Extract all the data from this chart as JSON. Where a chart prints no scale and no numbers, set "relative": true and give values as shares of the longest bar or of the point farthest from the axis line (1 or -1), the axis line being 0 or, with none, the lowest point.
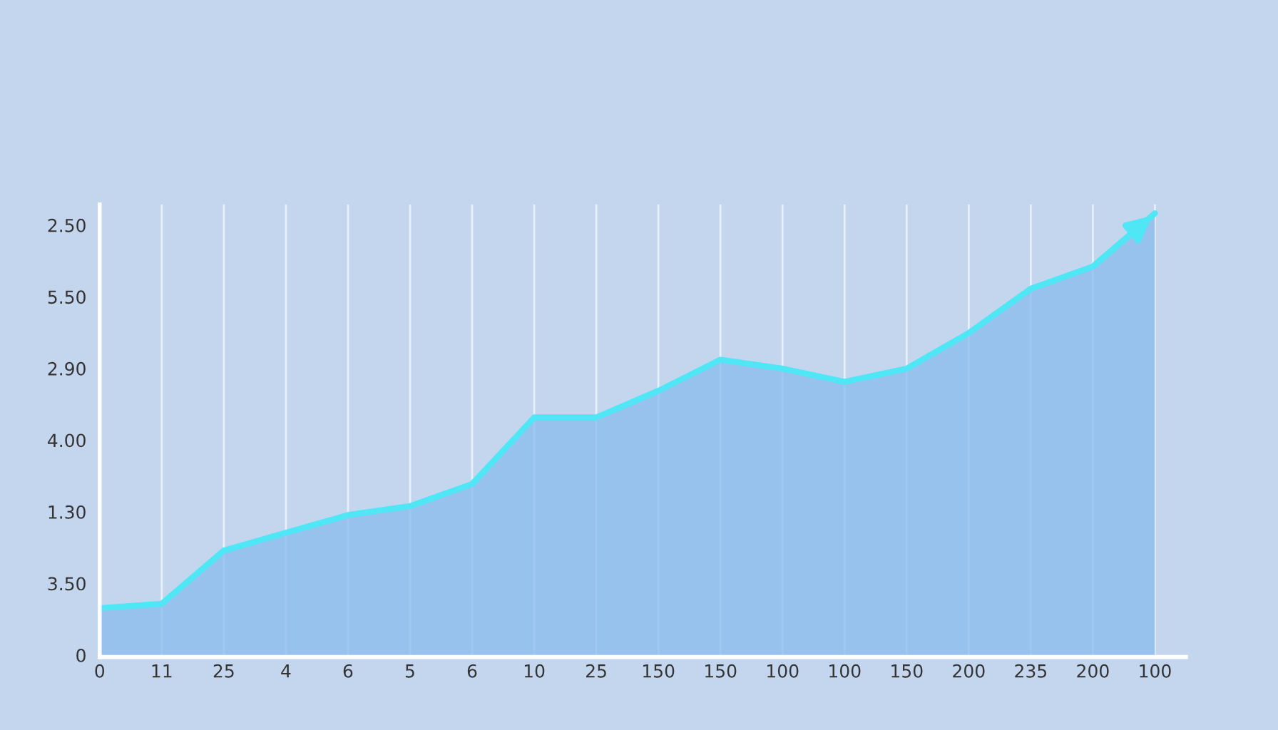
{
  "chart_data": {
    "type": "area",
    "relative": true,
    "categories": [
      "0",
      "11",
      "25",
      "4",
      "6",
      "5",
      "6",
      "10",
      "25",
      "150",
      "150",
      "100",
      "100",
      "150",
      "200",
      "235",
      "200",
      "100"
    ],
    "series": [
      {
        "color": "#4fe6f5",
        "values": [
          0.11,
          0.12,
          0.24,
          0.28,
          0.32,
          0.34,
          0.39,
          0.54,
          0.54,
          0.6,
          0.67,
          0.65,
          0.62,
          0.65,
          0.73,
          0.83,
          0.88,
          1.0
        ]
      }
    ],
    "annotations": [
      "2.50",
      "5.50",
      "2.90",
      "4.00",
      "1.30",
      "3.50",
      "0"
    ],
    "grid": "x"
  }
}
